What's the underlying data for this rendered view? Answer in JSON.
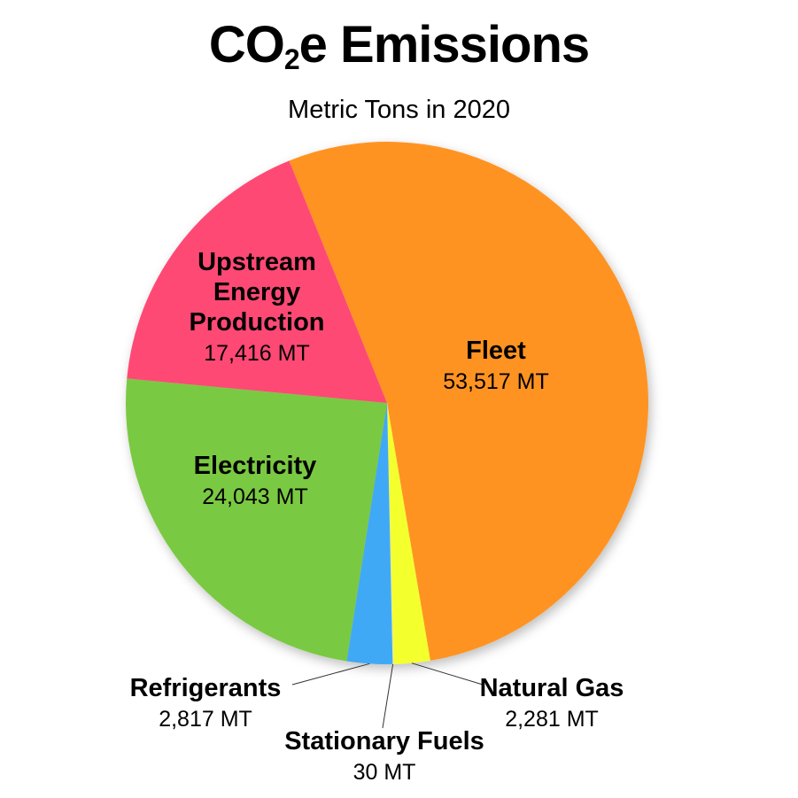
{
  "chart_data": {
    "type": "pie",
    "title_main": "CO",
    "title_sub": "2",
    "title_rest": "e Emissions",
    "subtitle": "Metric Tons in 2020",
    "slices": [
      {
        "label": "Fleet",
        "value": 53517,
        "value_text": "53,517 MT",
        "color": "#FF9320"
      },
      {
        "label": "Natural Gas",
        "value": 2281,
        "value_text": "2,281 MT",
        "color": "#F4FF2E"
      },
      {
        "label": "Stationary Fuels",
        "value": 30,
        "value_text": "30 MT",
        "color": "#FFFFFF"
      },
      {
        "label": "Refrigerants",
        "value": 2817,
        "value_text": "2,817 MT",
        "color": "#3FA9F5"
      },
      {
        "label": "Electricity",
        "value": 24043,
        "value_text": "24,043 MT",
        "color": "#7AC943"
      },
      {
        "label": "Upstream Energy Production",
        "label_lines": [
          "Upstream",
          "Energy",
          "Production"
        ],
        "value": 17416,
        "value_text": "17,416 MT",
        "color": "#FF4A75"
      }
    ]
  }
}
